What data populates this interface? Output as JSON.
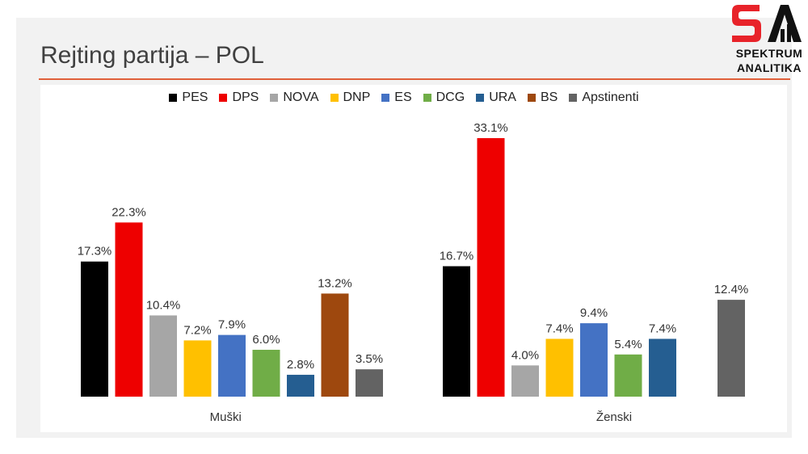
{
  "title": "Rejting partija – POL",
  "logo": {
    "line1": "SPEKTRUM",
    "line2": "ANALITIKA"
  },
  "chart_data": {
    "type": "bar",
    "title": "",
    "xlabel": "",
    "ylabel": "",
    "ylim": [
      0,
      35
    ],
    "grid": false,
    "legend_position": "top",
    "categories": [
      "Muški",
      "Ženski"
    ],
    "series": [
      {
        "name": "PES",
        "color": "#000000",
        "values": [
          17.3,
          16.7
        ],
        "labels": [
          "17.3%",
          "16.7%"
        ]
      },
      {
        "name": "DPS",
        "color": "#ee0000",
        "values": [
          22.3,
          33.1
        ],
        "labels": [
          "22.3%",
          "33.1%"
        ]
      },
      {
        "name": "NOVA",
        "color": "#a6a6a6",
        "values": [
          10.4,
          4.0
        ],
        "labels": [
          "10.4%",
          "4.0%"
        ]
      },
      {
        "name": "DNP",
        "color": "#ffc000",
        "values": [
          7.2,
          7.4
        ],
        "labels": [
          "7.2%",
          "7.4%"
        ]
      },
      {
        "name": "ES",
        "color": "#4472c4",
        "values": [
          7.9,
          9.4
        ],
        "labels": [
          "7.9%",
          "9.4%"
        ]
      },
      {
        "name": "DCG",
        "color": "#70ad47",
        "values": [
          6.0,
          5.4
        ],
        "labels": [
          "6.0%",
          "5.4%"
        ]
      },
      {
        "name": "URA",
        "color": "#255e91",
        "values": [
          2.8,
          7.4
        ],
        "labels": [
          "2.8%",
          "7.4%"
        ]
      },
      {
        "name": "BS",
        "color": "#9e480e",
        "values": [
          13.2,
          null
        ],
        "labels": [
          "13.2%",
          ""
        ]
      },
      {
        "name": "Apstinenti",
        "color": "#636363",
        "values": [
          3.5,
          12.4
        ],
        "labels": [
          "3.5%",
          "12.4%"
        ]
      }
    ]
  }
}
